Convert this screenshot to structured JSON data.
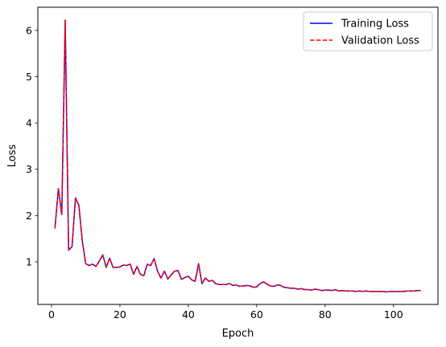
{
  "chart_data": {
    "type": "line",
    "xlabel": "Epoch",
    "ylabel": "Loss",
    "xlim": [
      -4,
      113
    ],
    "ylim": [
      0.08,
      6.5
    ],
    "xticks": [
      0,
      20,
      40,
      60,
      80,
      100
    ],
    "yticks": [
      1,
      2,
      3,
      4,
      5,
      6
    ],
    "grid": false,
    "legend_position": "top-right",
    "x": [
      1,
      2,
      3,
      4,
      5,
      6,
      7,
      8,
      9,
      10,
      11,
      12,
      13,
      14,
      15,
      16,
      17,
      18,
      19,
      20,
      21,
      22,
      23,
      24,
      25,
      26,
      27,
      28,
      29,
      30,
      31,
      32,
      33,
      34,
      35,
      36,
      37,
      38,
      39,
      40,
      41,
      42,
      43,
      44,
      45,
      46,
      47,
      48,
      49,
      50,
      51,
      52,
      53,
      54,
      55,
      56,
      57,
      58,
      59,
      60,
      61,
      62,
      63,
      64,
      65,
      66,
      67,
      68,
      69,
      70,
      71,
      72,
      73,
      74,
      75,
      76,
      77,
      78,
      79,
      80,
      81,
      82,
      83,
      84,
      85,
      86,
      87,
      88,
      89,
      90,
      91,
      92,
      93,
      94,
      95,
      96,
      97,
      98,
      99,
      100,
      101,
      102,
      103,
      104,
      105,
      106,
      107,
      108
    ],
    "series": [
      {
        "name": "Training Loss",
        "color": "#0000ff",
        "dash": "solid",
        "values": [
          1.72,
          2.58,
          2.02,
          6.22,
          1.25,
          1.33,
          2.38,
          2.22,
          1.45,
          0.96,
          0.92,
          0.95,
          0.9,
          1.02,
          1.15,
          0.88,
          1.08,
          0.88,
          0.88,
          0.89,
          0.93,
          0.92,
          0.95,
          0.73,
          0.9,
          0.73,
          0.7,
          0.95,
          0.92,
          1.07,
          0.8,
          0.65,
          0.8,
          0.63,
          0.72,
          0.8,
          0.81,
          0.62,
          0.66,
          0.69,
          0.61,
          0.58,
          0.96,
          0.53,
          0.65,
          0.58,
          0.6,
          0.53,
          0.51,
          0.51,
          0.51,
          0.53,
          0.49,
          0.5,
          0.47,
          0.48,
          0.49,
          0.48,
          0.45,
          0.46,
          0.53,
          0.57,
          0.52,
          0.48,
          0.47,
          0.5,
          0.49,
          0.45,
          0.44,
          0.43,
          0.43,
          0.41,
          0.42,
          0.4,
          0.4,
          0.39,
          0.41,
          0.4,
          0.38,
          0.39,
          0.39,
          0.38,
          0.4,
          0.37,
          0.38,
          0.37,
          0.37,
          0.37,
          0.36,
          0.37,
          0.36,
          0.37,
          0.36,
          0.36,
          0.36,
          0.36,
          0.36,
          0.35,
          0.36,
          0.36,
          0.36,
          0.36,
          0.36,
          0.37,
          0.37,
          0.37,
          0.38,
          0.38
        ]
      },
      {
        "name": "Validation Loss",
        "color": "#ff0000",
        "dash": "dashed",
        "values": [
          1.72,
          2.58,
          2.02,
          6.22,
          1.25,
          1.33,
          2.38,
          2.22,
          1.45,
          0.96,
          0.92,
          0.95,
          0.9,
          1.02,
          1.15,
          0.88,
          1.08,
          0.88,
          0.88,
          0.89,
          0.93,
          0.92,
          0.95,
          0.73,
          0.9,
          0.73,
          0.7,
          0.95,
          0.92,
          1.07,
          0.8,
          0.65,
          0.8,
          0.63,
          0.72,
          0.8,
          0.81,
          0.62,
          0.66,
          0.69,
          0.61,
          0.58,
          0.96,
          0.53,
          0.65,
          0.58,
          0.6,
          0.53,
          0.51,
          0.51,
          0.51,
          0.53,
          0.49,
          0.5,
          0.47,
          0.48,
          0.49,
          0.48,
          0.45,
          0.46,
          0.53,
          0.57,
          0.52,
          0.48,
          0.47,
          0.5,
          0.49,
          0.45,
          0.44,
          0.43,
          0.43,
          0.41,
          0.42,
          0.4,
          0.4,
          0.39,
          0.41,
          0.4,
          0.38,
          0.39,
          0.39,
          0.38,
          0.4,
          0.37,
          0.38,
          0.37,
          0.37,
          0.37,
          0.36,
          0.37,
          0.36,
          0.37,
          0.36,
          0.36,
          0.36,
          0.36,
          0.36,
          0.35,
          0.36,
          0.36,
          0.36,
          0.36,
          0.36,
          0.37,
          0.37,
          0.37,
          0.38,
          0.38
        ]
      }
    ]
  }
}
